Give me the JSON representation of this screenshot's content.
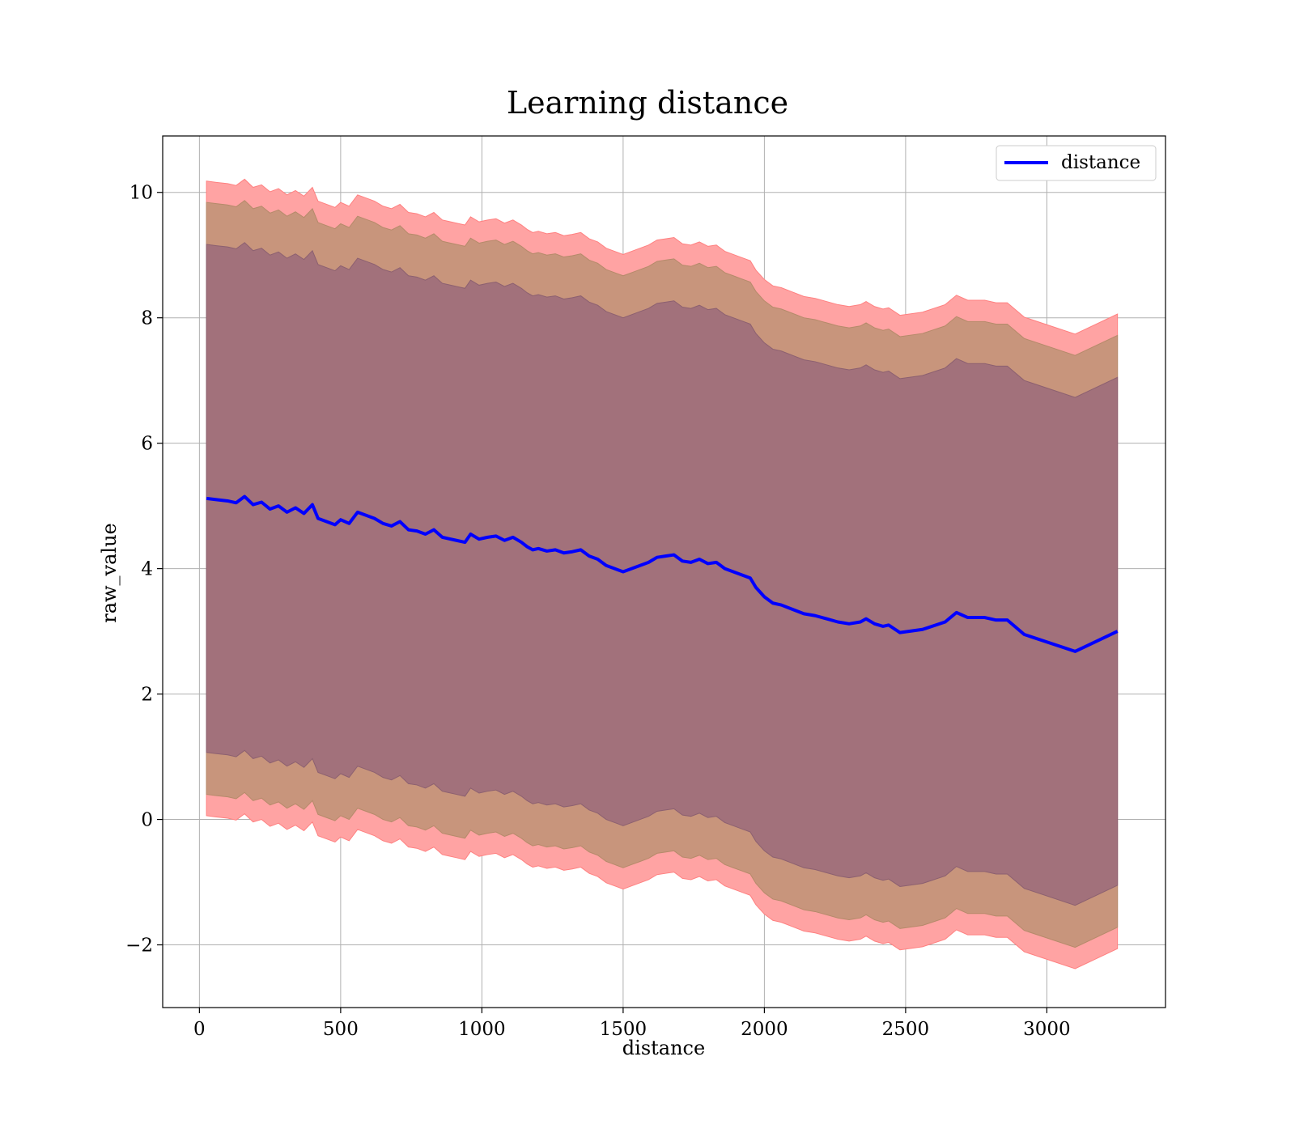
{
  "chart_data": {
    "type": "line",
    "title": "Learning distance",
    "xlabel": "distance",
    "ylabel": "raw_value",
    "xlim": [
      -130,
      3420
    ],
    "ylim": [
      -3.0,
      10.9
    ],
    "xticks": [
      0,
      500,
      1000,
      1500,
      2000,
      2500,
      3000
    ],
    "xtick_labels": [
      "0",
      "500",
      "1000",
      "1500",
      "2000",
      "2500",
      "3000"
    ],
    "yticks": [
      -2,
      0,
      2,
      4,
      6,
      8,
      10
    ],
    "ytick_labels": [
      "−2",
      "0",
      "2",
      "4",
      "6",
      "8",
      "10"
    ],
    "grid": true,
    "legend": {
      "position": "top-right",
      "entries": [
        "distance"
      ]
    },
    "colors": {
      "line": "#0000ff",
      "band_outer": "#ffa3a3",
      "band_middle": "#c8957c",
      "band_inner": "#a2717b",
      "grid": "#b0b0b0"
    },
    "series": [
      {
        "name": "distance",
        "x": [
          25,
          60,
          100,
          130,
          160,
          190,
          220,
          250,
          280,
          310,
          340,
          370,
          400,
          420,
          450,
          480,
          500,
          530,
          560,
          590,
          620,
          650,
          680,
          710,
          740,
          770,
          800,
          830,
          860,
          880,
          910,
          940,
          960,
          990,
          1020,
          1050,
          1080,
          1110,
          1140,
          1160,
          1180,
          1200,
          1230,
          1260,
          1290,
          1320,
          1350,
          1380,
          1410,
          1440,
          1470,
          1500,
          1530,
          1560,
          1590,
          1620,
          1650,
          1680,
          1710,
          1740,
          1770,
          1800,
          1830,
          1860,
          1890,
          1920,
          1950,
          1970,
          2000,
          2030,
          2060,
          2100,
          2140,
          2180,
          2220,
          2260,
          2300,
          2340,
          2360,
          2390,
          2420,
          2440,
          2480,
          2560,
          2640,
          2680,
          2720,
          2780,
          2820,
          2860,
          2920,
          3100,
          3250
        ],
        "values": [
          5.12,
          5.1,
          5.08,
          5.05,
          5.15,
          5.02,
          5.06,
          4.95,
          5.0,
          4.9,
          4.97,
          4.88,
          5.02,
          4.8,
          4.75,
          4.7,
          4.78,
          4.72,
          4.9,
          4.85,
          4.8,
          4.72,
          4.68,
          4.75,
          4.62,
          4.6,
          4.55,
          4.62,
          4.5,
          4.48,
          4.45,
          4.42,
          4.55,
          4.47,
          4.5,
          4.52,
          4.45,
          4.5,
          4.42,
          4.35,
          4.3,
          4.32,
          4.28,
          4.3,
          4.25,
          4.27,
          4.3,
          4.2,
          4.15,
          4.05,
          4.0,
          3.95,
          4.0,
          4.05,
          4.1,
          4.18,
          4.2,
          4.22,
          4.12,
          4.1,
          4.15,
          4.08,
          4.1,
          4.0,
          3.95,
          3.9,
          3.85,
          3.7,
          3.55,
          3.45,
          3.42,
          3.35,
          3.28,
          3.25,
          3.2,
          3.15,
          3.12,
          3.15,
          3.2,
          3.12,
          3.08,
          3.1,
          2.98,
          3.03,
          3.15,
          3.3,
          3.22,
          3.22,
          3.18,
          3.18,
          2.95,
          2.68,
          3.0
        ],
        "band_inner_offset": 4.05,
        "band_middle_offset": 4.72,
        "band_outer_offset": 5.06
      }
    ]
  }
}
